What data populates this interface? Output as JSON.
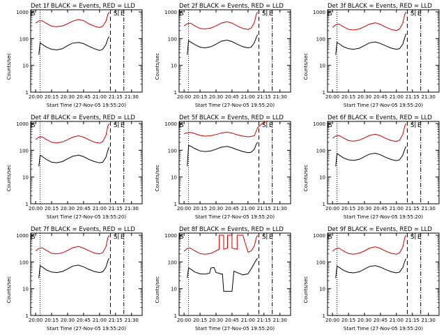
{
  "chart_data": [
    {
      "type": "line",
      "title": "Det 1f BLACK = Events, RED = LLD",
      "xlabel": "Start Time (27-Nov-05 19:55:20)",
      "ylabel": "Counts/sec",
      "xticks": [
        "20:00",
        "20:15",
        "20:30",
        "20:45",
        "21:00",
        "21:15",
        "21:30"
      ],
      "yticks": [
        "1",
        "10",
        "100",
        "1000"
      ],
      "ylim": [
        1,
        1200
      ],
      "log_y": true,
      "markers": [
        "S",
        "E"
      ],
      "series": [
        {
          "name": "Events",
          "color": "#000000",
          "x": [
            20.05,
            20.07,
            20.1,
            20.17,
            20.25,
            20.33,
            20.42,
            20.5,
            20.58,
            20.67,
            20.75,
            20.83,
            20.92,
            21.0,
            21.05,
            21.1,
            21.13,
            21.15
          ],
          "values": [
            25,
            70,
            62,
            48,
            40,
            38,
            42,
            55,
            68,
            72,
            65,
            52,
            42,
            36,
            40,
            60,
            100,
            120
          ]
        },
        {
          "name": "LLD",
          "color": "#cc0000",
          "x": [
            20.0,
            20.05,
            20.1,
            20.17,
            20.25,
            20.33,
            20.42,
            20.5,
            20.58,
            20.67,
            20.75,
            20.83,
            20.92,
            21.0,
            21.05,
            21.1,
            21.13,
            21.15
          ],
          "values": [
            380,
            460,
            470,
            370,
            290,
            280,
            300,
            360,
            450,
            520,
            470,
            360,
            290,
            260,
            290,
            450,
            800,
            1000
          ]
        }
      ]
    },
    {
      "type": "line",
      "title": "Det 2f BLACK = Events, RED = LLD",
      "xlabel": "Start Time (27-Nov-05 19:55:20)",
      "ylabel": "Counts/sec",
      "xticks": [
        "20:00",
        "20:15",
        "20:30",
        "20:45",
        "21:00",
        "21:15",
        "21:30"
      ],
      "yticks": [
        "1",
        "10",
        "100",
        "1000"
      ],
      "ylim": [
        1,
        1200
      ],
      "log_y": true,
      "markers": [
        "S",
        "E"
      ],
      "series": [
        {
          "name": "Events",
          "color": "#000000",
          "x": [
            20.05,
            20.07,
            20.1,
            20.17,
            20.25,
            20.33,
            20.42,
            20.5,
            20.58,
            20.67,
            20.75,
            20.83,
            20.92,
            21.0,
            21.05,
            21.1,
            21.13,
            21.15
          ],
          "values": [
            25,
            85,
            75,
            60,
            48,
            45,
            50,
            62,
            80,
            88,
            78,
            62,
            50,
            45,
            48,
            70,
            110,
            140
          ]
        },
        {
          "name": "LLD",
          "color": "#cc0000",
          "x": [
            20.0,
            20.05,
            20.1,
            20.17,
            20.25,
            20.33,
            20.42,
            20.5,
            20.58,
            20.67,
            20.75,
            20.83,
            20.92,
            21.0,
            21.05,
            21.1,
            21.13,
            21.15
          ],
          "values": [
            300,
            360,
            380,
            300,
            240,
            230,
            250,
            300,
            380,
            430,
            380,
            300,
            240,
            220,
            250,
            400,
            800,
            1000
          ]
        }
      ]
    },
    {
      "type": "line",
      "title": "Det 3f BLACK = Events, RED = LLD",
      "xlabel": "Start Time (27-Nov-05 19:55:20)",
      "ylabel": "Counts/sec",
      "xticks": [
        "20:00",
        "20:15",
        "20:30",
        "20:45",
        "21:00",
        "21:15",
        "21:30"
      ],
      "yticks": [
        "1",
        "10",
        "100",
        "1000"
      ],
      "ylim": [
        1,
        1200
      ],
      "log_y": true,
      "markers": [
        "S",
        "E"
      ],
      "series": [
        {
          "name": "Events",
          "color": "#000000",
          "x": [
            20.05,
            20.07,
            20.1,
            20.17,
            20.25,
            20.33,
            20.42,
            20.5,
            20.58,
            20.67,
            20.75,
            20.83,
            20.92,
            21.0,
            21.05,
            21.1,
            21.13,
            21.15
          ],
          "values": [
            25,
            72,
            65,
            50,
            42,
            40,
            44,
            55,
            70,
            75,
            66,
            54,
            44,
            40,
            42,
            62,
            110,
            150
          ]
        },
        {
          "name": "LLD",
          "color": "#cc0000",
          "x": [
            20.0,
            20.05,
            20.1,
            20.17,
            20.25,
            20.33,
            20.42,
            20.5,
            20.58,
            20.67,
            20.75,
            20.83,
            20.92,
            21.0,
            21.05,
            21.1,
            21.13,
            21.15
          ],
          "values": [
            260,
            330,
            350,
            280,
            220,
            210,
            230,
            280,
            350,
            390,
            340,
            270,
            220,
            200,
            230,
            380,
            800,
            1000
          ]
        }
      ]
    },
    {
      "type": "line",
      "title": "Det 4f BLACK = Events, RED = LLD",
      "xlabel": "Start Time (27-Nov-05 19:55:20)",
      "ylabel": "Counts/sec",
      "xticks": [
        "20:00",
        "20:15",
        "20:30",
        "20:45",
        "21:00",
        "21:15",
        "21:30"
      ],
      "yticks": [
        "1",
        "10",
        "100",
        "1000"
      ],
      "ylim": [
        1,
        1200
      ],
      "log_y": true,
      "markers": [
        "S",
        "E"
      ],
      "series": [
        {
          "name": "Events",
          "color": "#000000",
          "x": [
            20.05,
            20.07,
            20.1,
            20.17,
            20.25,
            20.33,
            20.42,
            20.5,
            20.58,
            20.67,
            20.75,
            20.83,
            20.92,
            21.0,
            21.05,
            21.1,
            21.13,
            21.15
          ],
          "values": [
            25,
            65,
            60,
            45,
            36,
            34,
            38,
            48,
            60,
            66,
            58,
            46,
            38,
            34,
            36,
            55,
            100,
            130
          ]
        },
        {
          "name": "LLD",
          "color": "#cc0000",
          "x": [
            20.0,
            20.05,
            20.1,
            20.17,
            20.25,
            20.33,
            20.42,
            20.5,
            20.58,
            20.67,
            20.75,
            20.83,
            20.92,
            21.0,
            21.05,
            21.1,
            21.13,
            21.15
          ],
          "values": [
            250,
            310,
            320,
            250,
            200,
            190,
            205,
            250,
            310,
            350,
            310,
            250,
            200,
            185,
            210,
            360,
            800,
            1000
          ]
        }
      ]
    },
    {
      "type": "line",
      "title": "Det 5f BLACK = Events, RED = LLD",
      "xlabel": "Start Time (27-Nov-05 19:55:20)",
      "ylabel": "Counts/sec",
      "xticks": [
        "20:00",
        "20:15",
        "20:30",
        "20:45",
        "21:00",
        "21:15",
        "21:30"
      ],
      "yticks": [
        "1",
        "10",
        "100",
        "1000"
      ],
      "ylim": [
        1,
        1200
      ],
      "log_y": true,
      "markers": [
        "S",
        "E"
      ],
      "series": [
        {
          "name": "Events",
          "color": "#000000",
          "x": [
            20.05,
            20.07,
            20.1,
            20.17,
            20.25,
            20.33,
            20.42,
            20.5,
            20.58,
            20.67,
            20.75,
            20.83,
            20.92,
            21.0,
            21.05,
            21.1,
            21.13,
            21.15
          ],
          "values": [
            25,
            150,
            145,
            115,
            95,
            90,
            95,
            110,
            130,
            140,
            125,
            105,
            90,
            82,
            85,
            110,
            170,
            200
          ]
        },
        {
          "name": "LLD",
          "color": "#cc0000",
          "x": [
            20.0,
            20.05,
            20.1,
            20.17,
            20.25,
            20.33,
            20.42,
            20.5,
            20.58,
            20.67,
            20.75,
            20.83,
            20.92,
            21.0,
            21.05,
            21.1,
            21.15,
            21.22,
            21.28
          ],
          "values": [
            420,
            450,
            470,
            420,
            360,
            340,
            350,
            390,
            440,
            480,
            440,
            380,
            340,
            320,
            330,
            350,
            700,
            1000,
            1200
          ]
        }
      ]
    },
    {
      "type": "line",
      "title": "Det 6f BLACK = Events, RED = LLD",
      "xlabel": "Start Time (27-Nov-05 19:55:20)",
      "ylabel": "Counts/sec",
      "xticks": [
        "20:00",
        "20:15",
        "20:30",
        "20:45",
        "21:00",
        "21:15",
        "21:30"
      ],
      "yticks": [
        "1",
        "10",
        "100",
        "1000"
      ],
      "ylim": [
        1,
        1200
      ],
      "log_y": true,
      "markers": [
        "S",
        "E"
      ],
      "series": [
        {
          "name": "Events",
          "color": "#000000",
          "x": [
            20.05,
            20.07,
            20.1,
            20.17,
            20.25,
            20.33,
            20.42,
            20.5,
            20.58,
            20.67,
            20.75,
            20.83,
            20.92,
            21.0,
            21.05,
            21.1,
            21.13,
            21.15
          ],
          "values": [
            25,
            75,
            68,
            52,
            44,
            42,
            46,
            58,
            72,
            78,
            68,
            55,
            45,
            41,
            44,
            66,
            110,
            140
          ]
        },
        {
          "name": "LLD",
          "color": "#cc0000",
          "x": [
            20.0,
            20.05,
            20.1,
            20.17,
            20.25,
            20.33,
            20.42,
            20.5,
            20.58,
            20.67,
            20.75,
            20.83,
            20.92,
            21.0,
            21.05,
            21.1,
            21.13,
            21.15
          ],
          "values": [
            280,
            340,
            360,
            290,
            230,
            220,
            240,
            290,
            360,
            400,
            350,
            280,
            230,
            215,
            240,
            390,
            800,
            1000
          ]
        }
      ]
    },
    {
      "type": "line",
      "title": "Det 7f BLACK = Events, RED = LLD",
      "xlabel": "Start Time (27-Nov-05 19:55:20)",
      "ylabel": "Counts/sec",
      "xticks": [
        "20:00",
        "20:15",
        "20:30",
        "20:45",
        "21:00",
        "21:15",
        "21:30"
      ],
      "yticks": [
        "1",
        "10",
        "100",
        "1000"
      ],
      "ylim": [
        1,
        1200
      ],
      "log_y": true,
      "markers": [
        "S",
        "E"
      ],
      "series": [
        {
          "name": "Events",
          "color": "#000000",
          "x": [
            20.05,
            20.07,
            20.1,
            20.17,
            20.25,
            20.33,
            20.42,
            20.5,
            20.58,
            20.67,
            20.75,
            20.83,
            20.92,
            21.0,
            21.05,
            21.1,
            21.13,
            21.15
          ],
          "values": [
            25,
            72,
            66,
            50,
            42,
            40,
            44,
            55,
            70,
            76,
            66,
            53,
            44,
            40,
            43,
            63,
            110,
            140
          ]
        },
        {
          "name": "LLD",
          "color": "#cc0000",
          "x": [
            20.0,
            20.05,
            20.1,
            20.17,
            20.25,
            20.33,
            20.42,
            20.5,
            20.58,
            20.67,
            20.75,
            20.83,
            20.92,
            21.0,
            21.05,
            21.1,
            21.13,
            21.15
          ],
          "values": [
            260,
            320,
            340,
            270,
            210,
            200,
            220,
            270,
            340,
            380,
            330,
            265,
            215,
            200,
            225,
            370,
            800,
            1000
          ]
        }
      ]
    },
    {
      "type": "line",
      "title": "Det 8f BLACK = Events, RED = LLD",
      "xlabel": "Start Time (27-Nov-05 19:55:20)",
      "ylabel": "Counts/sec",
      "xticks": [
        "20:00",
        "20:15",
        "20:30",
        "20:45",
        "21:00",
        "21:15",
        "21:30"
      ],
      "yticks": [
        "1",
        "10",
        "100",
        "1000"
      ],
      "ylim": [
        1,
        1200
      ],
      "log_y": true,
      "markers": [
        "S",
        "E"
      ],
      "series": [
        {
          "name": "Events",
          "color": "#000000",
          "x": [
            20.05,
            20.07,
            20.1,
            20.17,
            20.25,
            20.33,
            20.4,
            20.42,
            20.47,
            20.5,
            20.55,
            20.58,
            20.6,
            20.62,
            20.75,
            20.78,
            20.83,
            20.92,
            21.0,
            21.05,
            21.1,
            21.13,
            21.15
          ],
          "values": [
            25,
            60,
            55,
            42,
            36,
            35,
            38,
            60,
            62,
            40,
            38,
            35,
            36,
            8,
            8,
            45,
            40,
            33,
            36,
            55,
            90,
            120,
            140
          ]
        },
        {
          "name": "LLD",
          "color": "#cc0000",
          "x": [
            20.0,
            20.05,
            20.1,
            20.17,
            20.25,
            20.33,
            20.42,
            20.5,
            20.55,
            20.55,
            20.62,
            20.62,
            20.68,
            20.68,
            20.75,
            20.75,
            20.83,
            20.83,
            20.92,
            21.0,
            21.05,
            21.1,
            21.13,
            21.15
          ],
          "values": [
            250,
            320,
            330,
            260,
            205,
            195,
            210,
            260,
            300,
            1000,
            1000,
            300,
            330,
            1000,
            1000,
            330,
            300,
            1000,
            1000,
            230,
            260,
            400,
            800,
            1000
          ]
        }
      ]
    },
    {
      "type": "line",
      "title": "Det 9f BLACK = Events, RED = LLD",
      "xlabel": "Start Time (27-Nov-05 19:55:20)",
      "ylabel": "Counts/sec",
      "xticks": [
        "20:00",
        "20:15",
        "20:30",
        "20:45",
        "21:00",
        "21:15",
        "21:30"
      ],
      "yticks": [
        "1",
        "10",
        "100",
        "1000"
      ],
      "ylim": [
        1,
        1200
      ],
      "log_y": true,
      "markers": [
        "S",
        "E"
      ],
      "series": [
        {
          "name": "Events",
          "color": "#000000",
          "x": [
            20.05,
            20.07,
            20.1,
            20.17,
            20.25,
            20.33,
            20.42,
            20.5,
            20.58,
            20.67,
            20.75,
            20.83,
            20.92,
            21.0,
            21.05,
            21.1,
            21.13,
            21.15
          ],
          "values": [
            25,
            70,
            64,
            49,
            41,
            39,
            43,
            54,
            68,
            73,
            64,
            52,
            43,
            39,
            42,
            62,
            105,
            135
          ]
        },
        {
          "name": "LLD",
          "color": "#cc0000",
          "x": [
            20.0,
            20.05,
            20.1,
            20.17,
            20.25,
            20.33,
            20.42,
            20.5,
            20.58,
            20.67,
            20.75,
            20.83,
            20.92,
            21.0,
            21.05,
            21.1,
            21.13,
            21.15
          ],
          "values": [
            250,
            310,
            330,
            260,
            205,
            195,
            215,
            260,
            330,
            370,
            320,
            255,
            210,
            195,
            220,
            360,
            800,
            1000
          ]
        }
      ]
    }
  ]
}
